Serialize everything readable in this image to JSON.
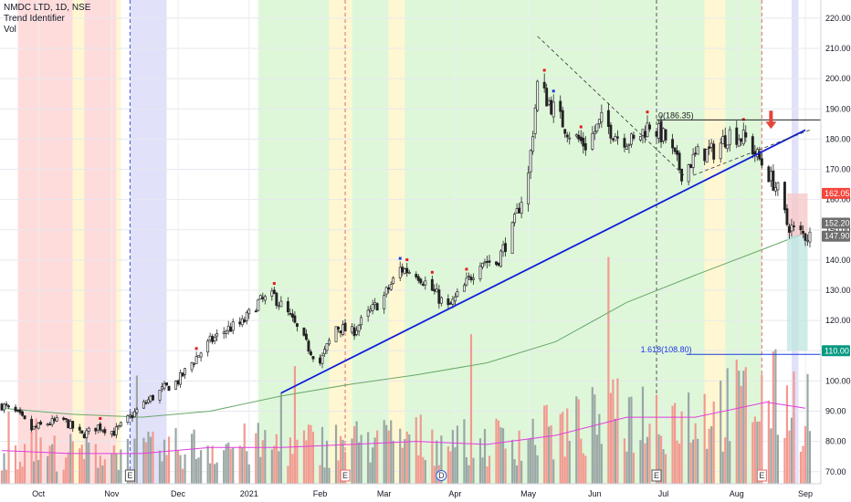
{
  "legend": {
    "title": "NMDC LTD, 1D, NSE",
    "indicator1": "Trend Identifier",
    "indicator2": "Vol"
  },
  "colors": {
    "up": "#2a2a2a",
    "down": "#222222",
    "trendline": "#0d1fd6",
    "ma": "#6aa86a",
    "volma": "#e23be0",
    "volUp": "#9aa7a5",
    "volDown": "#f29a90",
    "redDot": "#e21c1c",
    "blueDot": "#1c3ae2",
    "fib": "#1c3ae2",
    "tagGrey": "#6e6e6e",
    "tagRed": "#f3463d",
    "tagTeal": "#089981"
  },
  "chart_data": {
    "type": "candlestick",
    "symbol": "NMDC LTD",
    "interval": "1D",
    "exchange": "NSE",
    "ylim": [
      66,
      226
    ],
    "y_ticks": [
      "70.00",
      "80.00",
      "90.00",
      "100.00",
      "110.00",
      "120.00",
      "130.00",
      "140.00",
      "150.00",
      "160.00",
      "170.00",
      "180.00",
      "190.00",
      "200.00",
      "210.00",
      "220.00"
    ],
    "x_ticks": [
      "Oct",
      "Nov",
      "Dec",
      "2021",
      "Feb",
      "Mar",
      "Apr",
      "May",
      "Jun",
      "Jul",
      "Aug",
      "Sep"
    ],
    "x_tick_dates": [
      "2020-10-01",
      "2020-11-02",
      "2020-12-01",
      "2021-01-01",
      "2021-02-01",
      "2021-03-01",
      "2021-04-01",
      "2021-05-03",
      "2021-06-01",
      "2021-07-01",
      "2021-08-02",
      "2021-09-01"
    ],
    "start_date": "2020-09-15",
    "end_date": "2021-09-03",
    "close_path": [
      [
        "2020-09-15",
        92
      ],
      [
        "2020-09-22",
        89
      ],
      [
        "2020-09-28",
        84
      ],
      [
        "2020-10-05",
        86
      ],
      [
        "2020-10-12",
        87
      ],
      [
        "2020-10-20",
        82
      ],
      [
        "2020-10-27",
        85
      ],
      [
        "2020-11-03",
        83
      ],
      [
        "2020-11-10",
        88
      ],
      [
        "2020-11-17",
        93
      ],
      [
        "2020-11-24",
        97
      ],
      [
        "2020-12-01",
        100
      ],
      [
        "2020-12-08",
        107
      ],
      [
        "2020-12-15",
        113
      ],
      [
        "2020-12-22",
        117
      ],
      [
        "2020-12-29",
        119
      ],
      [
        "2021-01-05",
        126
      ],
      [
        "2021-01-12",
        128
      ],
      [
        "2021-01-19",
        121
      ],
      [
        "2021-01-26",
        112
      ],
      [
        "2021-02-01",
        106
      ],
      [
        "2021-02-08",
        118
      ],
      [
        "2021-02-15",
        116
      ],
      [
        "2021-02-22",
        122
      ],
      [
        "2021-03-01",
        128
      ],
      [
        "2021-03-08",
        137
      ],
      [
        "2021-03-15",
        136
      ],
      [
        "2021-03-22",
        130
      ],
      [
        "2021-03-29",
        124
      ],
      [
        "2021-04-05",
        131
      ],
      [
        "2021-04-12",
        140
      ],
      [
        "2021-04-19",
        139
      ],
      [
        "2021-04-26",
        150
      ],
      [
        "2021-05-03",
        168
      ],
      [
        "2021-05-07",
        198
      ],
      [
        "2021-05-14",
        190
      ],
      [
        "2021-05-21",
        182
      ],
      [
        "2021-05-28",
        178
      ],
      [
        "2021-06-04",
        186
      ],
      [
        "2021-06-11",
        181
      ],
      [
        "2021-06-18",
        179
      ],
      [
        "2021-06-25",
        185
      ],
      [
        "2021-07-02",
        180
      ],
      [
        "2021-07-09",
        169
      ],
      [
        "2021-07-16",
        175
      ],
      [
        "2021-07-23",
        176
      ],
      [
        "2021-07-30",
        182
      ],
      [
        "2021-08-06",
        180
      ],
      [
        "2021-08-13",
        172
      ],
      [
        "2021-08-20",
        163
      ],
      [
        "2021-08-24",
        152
      ],
      [
        "2021-08-27",
        150
      ],
      [
        "2021-09-01",
        148
      ]
    ],
    "ma_path": [
      [
        "2020-09-15",
        91
      ],
      [
        "2020-10-15",
        89
      ],
      [
        "2020-11-15",
        88
      ],
      [
        "2020-12-15",
        90
      ],
      [
        "2021-01-15",
        95
      ],
      [
        "2021-02-15",
        99
      ],
      [
        "2021-03-15",
        102
      ],
      [
        "2021-04-15",
        106
      ],
      [
        "2021-05-15",
        113
      ],
      [
        "2021-06-15",
        126
      ],
      [
        "2021-07-15",
        135
      ],
      [
        "2021-08-15",
        144
      ],
      [
        "2021-09-01",
        149
      ]
    ],
    "vol_ma_path": [
      [
        "2020-09-15",
        11
      ],
      [
        "2020-10-15",
        10
      ],
      [
        "2020-11-15",
        10
      ],
      [
        "2020-12-15",
        12
      ],
      [
        "2021-01-15",
        12
      ],
      [
        "2021-02-15",
        13
      ],
      [
        "2021-03-15",
        14
      ],
      [
        "2021-04-15",
        13
      ],
      [
        "2021-05-15",
        16
      ],
      [
        "2021-06-15",
        22
      ],
      [
        "2021-07-15",
        22
      ],
      [
        "2021-08-15",
        27
      ],
      [
        "2021-09-01",
        25
      ]
    ],
    "trendline": [
      [
        "2021-01-15",
        96
      ],
      [
        "2021-09-01",
        183
      ]
    ],
    "dashed_lines": [
      [
        [
          "2021-05-07",
          214
        ],
        [
          "2021-07-10",
          168
        ]
      ],
      [
        [
          "2021-07-14",
          168
        ],
        [
          "2021-09-03",
          183
        ]
      ]
    ],
    "horizontal_levels": [
      {
        "label": "0(186.35)",
        "value": 186.35,
        "from": "2021-07-02"
      },
      {
        "label": "1.618(108.80)",
        "value": 108.8,
        "from": "2021-07-15"
      }
    ],
    "price_tags": [
      {
        "text": "162.05",
        "value": 162.05,
        "color": "tagRed"
      },
      {
        "text": "152.20",
        "value": 152.2,
        "color": "tagGrey"
      },
      {
        "text": "147.90",
        "value": 147.9,
        "color": "tagGrey"
      },
      {
        "text": "110.00",
        "value": 110.0,
        "color": "tagTeal"
      }
    ],
    "position_box": {
      "from": "2021-08-24",
      "to": "2021-09-02",
      "entry": 148,
      "stop": 162,
      "target": 110
    },
    "event_markers": [
      {
        "label": "E",
        "date": "2020-11-10"
      },
      {
        "label": "E",
        "date": "2021-02-12"
      },
      {
        "label": "D",
        "date": "2021-03-26"
      },
      {
        "label": "E",
        "date": "2021-06-28"
      },
      {
        "label": "E",
        "date": "2021-08-13"
      }
    ],
    "vertical_dashes": [
      {
        "date": "2020-11-10",
        "color": "#3a55d8"
      },
      {
        "date": "2021-02-12",
        "color": "#e26a6a"
      },
      {
        "date": "2021-06-28",
        "color": "#555555"
      },
      {
        "date": "2021-08-13",
        "color": "#e26a6a"
      }
    ],
    "bands": [
      {
        "from": "2020-09-22",
        "to": "2020-10-16",
        "color": "#ffd6d6"
      },
      {
        "from": "2020-10-16",
        "to": "2020-10-21",
        "color": "#fff6c9"
      },
      {
        "from": "2020-10-21",
        "to": "2020-11-04",
        "color": "#ffd6d6"
      },
      {
        "from": "2020-11-04",
        "to": "2020-11-06",
        "color": "#fff6c9"
      },
      {
        "from": "2020-11-10",
        "to": "2020-11-26",
        "color": "#dcdcf8"
      },
      {
        "from": "2021-01-05",
        "to": "2021-02-05",
        "color": "#d8f6d2"
      },
      {
        "from": "2021-02-05",
        "to": "2021-02-15",
        "color": "#fff6c9"
      },
      {
        "from": "2021-02-15",
        "to": "2021-03-03",
        "color": "#d8f6d2"
      },
      {
        "from": "2021-03-03",
        "to": "2021-03-10",
        "color": "#fff6c9"
      },
      {
        "from": "2021-03-10",
        "to": "2021-07-19",
        "color": "#d8f6d2"
      },
      {
        "from": "2021-07-19",
        "to": "2021-07-28",
        "color": "#fff6c9"
      },
      {
        "from": "2021-07-28",
        "to": "2021-08-13",
        "color": "#d8f6d2"
      },
      {
        "from": "2021-08-26",
        "to": "2021-08-29",
        "color": "#dcdcf8"
      }
    ],
    "arrow": {
      "date": "2021-08-17",
      "value": 187,
      "color": "#e2453a"
    }
  }
}
